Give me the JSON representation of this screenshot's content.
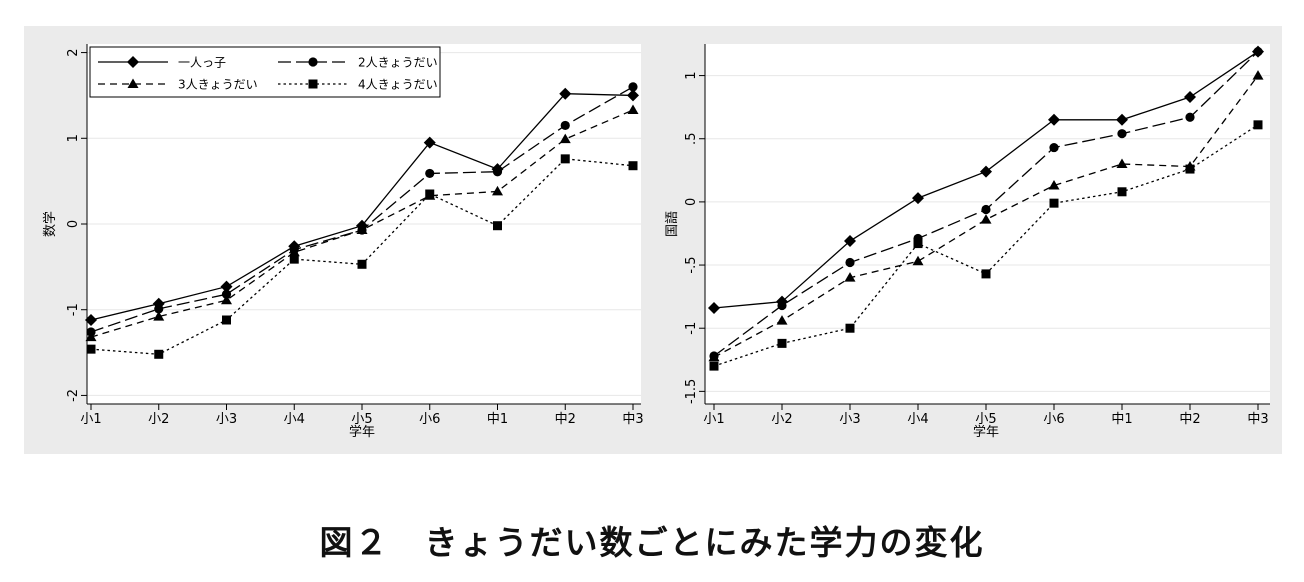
{
  "caption": "図２　きょうだい数ごとにみた学力の変化",
  "chart_data": [
    {
      "type": "line",
      "title": "",
      "xlabel": "学年",
      "ylabel": "数学",
      "categories": [
        "小1",
        "小2",
        "小3",
        "小4",
        "小5",
        "小6",
        "中1",
        "中2",
        "中3"
      ],
      "ylim": [
        -2.1,
        2.1
      ],
      "yticks": [
        -2,
        -1,
        0,
        1,
        2
      ],
      "ytick_labels": [
        "-2",
        "-1",
        "0",
        "1",
        "2"
      ],
      "grid": "horizontal",
      "legend_position": "top-left",
      "series": [
        {
          "name": "一人っ子",
          "marker": "diamond",
          "dash": "solid",
          "values": [
            -1.12,
            -0.93,
            -0.73,
            -0.26,
            -0.02,
            0.95,
            0.64,
            1.52,
            1.5
          ]
        },
        {
          "name": "2人きょうだい",
          "marker": "circle",
          "dash": "longdash",
          "values": [
            -1.26,
            -0.99,
            -0.82,
            -0.3,
            -0.07,
            0.59,
            0.61,
            1.15,
            1.6
          ]
        },
        {
          "name": "3人きょうだい",
          "marker": "triangle",
          "dash": "dash",
          "values": [
            -1.32,
            -1.08,
            -0.89,
            -0.33,
            -0.07,
            0.33,
            0.38,
            0.99,
            1.33
          ]
        },
        {
          "name": "4人きょうだい",
          "marker": "square",
          "dash": "dot",
          "values": [
            -1.46,
            -1.52,
            -1.12,
            -0.41,
            -0.47,
            0.35,
            -0.02,
            0.76,
            0.68
          ]
        }
      ]
    },
    {
      "type": "line",
      "title": "",
      "xlabel": "学年",
      "ylabel": "国語",
      "categories": [
        "小1",
        "小2",
        "小3",
        "小4",
        "小5",
        "小6",
        "中1",
        "中2",
        "中3"
      ],
      "ylim": [
        -1.6,
        1.25
      ],
      "yticks": [
        -1.5,
        -1,
        -0.5,
        0,
        0.5,
        1
      ],
      "ytick_labels": [
        "-1.5",
        "-1",
        "-.5",
        "0",
        ".5",
        "1"
      ],
      "grid": "horizontal",
      "legend_position": "none",
      "series": [
        {
          "name": "一人っ子",
          "marker": "diamond",
          "dash": "solid",
          "values": [
            -0.84,
            -0.79,
            -0.31,
            0.03,
            0.24,
            0.65,
            0.65,
            0.83,
            1.19
          ]
        },
        {
          "name": "2人きょうだい",
          "marker": "circle",
          "dash": "longdash",
          "values": [
            -1.22,
            -0.82,
            -0.48,
            -0.29,
            -0.06,
            0.43,
            0.54,
            0.67,
            1.19
          ]
        },
        {
          "name": "3人きょうだい",
          "marker": "triangle",
          "dash": "dash",
          "values": [
            -1.23,
            -0.94,
            -0.6,
            -0.47,
            -0.14,
            0.13,
            0.3,
            0.28,
            1.0
          ]
        },
        {
          "name": "4人きょうだい",
          "marker": "square",
          "dash": "dot",
          "values": [
            -1.3,
            -1.12,
            -1.0,
            -0.33,
            -0.57,
            -0.01,
            0.08,
            0.26,
            0.61
          ]
        }
      ]
    }
  ]
}
